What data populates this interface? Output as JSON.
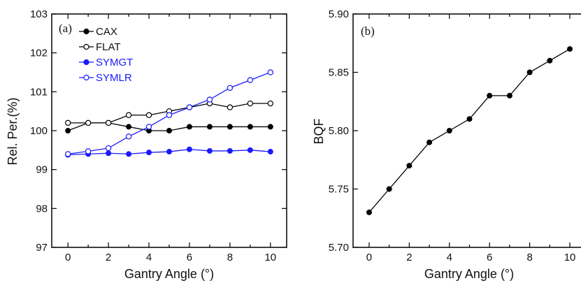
{
  "chart_data": [
    {
      "type": "line",
      "panel_label": "(a)",
      "xlabel": "Gantry Angle (°)",
      "ylabel": "Rel. Per.(%)",
      "xlim": [
        -0.8,
        10.8
      ],
      "ylim": [
        97,
        103
      ],
      "xticks": [
        0,
        2,
        4,
        6,
        8,
        10
      ],
      "yticks": [
        97,
        98,
        99,
        100,
        101,
        102,
        103
      ],
      "legend_placement": "top-left",
      "x": [
        0,
        1,
        2,
        3,
        4,
        5,
        6,
        7,
        8,
        9,
        10
      ],
      "series": [
        {
          "name": "CAX",
          "color": "#000000",
          "marker": "filled-circle",
          "values": [
            100.0,
            100.2,
            100.2,
            100.1,
            100.0,
            100.0,
            100.1,
            100.1,
            100.1,
            100.1,
            100.1
          ]
        },
        {
          "name": "FLAT",
          "color": "#000000",
          "marker": "open-circle",
          "values": [
            100.2,
            100.2,
            100.2,
            100.4,
            100.4,
            100.5,
            100.6,
            100.7,
            100.6,
            100.7,
            100.7
          ]
        },
        {
          "name": "SYMGT",
          "color": "#1a1aff",
          "marker": "filled-circle",
          "values": [
            99.38,
            99.4,
            99.42,
            99.4,
            99.44,
            99.46,
            99.52,
            99.48,
            99.48,
            99.5,
            99.46
          ]
        },
        {
          "name": "SYMLR",
          "color": "#1a1aff",
          "marker": "open-circle",
          "values": [
            99.4,
            99.47,
            99.55,
            99.85,
            100.1,
            100.4,
            100.6,
            100.8,
            101.1,
            101.3,
            101.5
          ]
        }
      ]
    },
    {
      "type": "line",
      "panel_label": "(b)",
      "xlabel": "Gantry Angle (°)",
      "ylabel": "BQF",
      "xlim": [
        -0.8,
        10.8
      ],
      "ylim": [
        5.7,
        5.9
      ],
      "xticks": [
        0,
        2,
        4,
        6,
        8,
        10
      ],
      "yticks": [
        "5.70",
        "5.75",
        "5.80",
        "5.85",
        "5.90"
      ],
      "x": [
        0,
        1,
        2,
        3,
        4,
        5,
        6,
        7,
        8,
        9,
        10
      ],
      "series": [
        {
          "color": "#000000",
          "marker": "filled-circle",
          "values": [
            5.73,
            5.75,
            5.77,
            5.79,
            5.8,
            5.81,
            5.83,
            5.83,
            5.85,
            5.86,
            5.87
          ]
        }
      ]
    }
  ]
}
